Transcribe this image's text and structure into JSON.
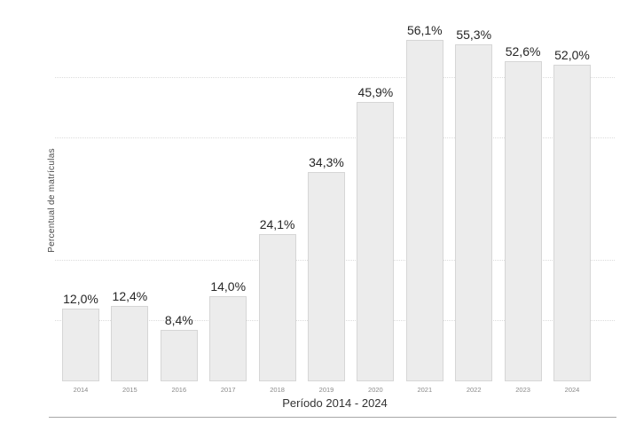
{
  "chart_data": {
    "type": "bar",
    "title": "",
    "xlabel": "Período 2014 - 2024",
    "ylabel": "Percentual de matrículas",
    "categories": [
      "2014",
      "2015",
      "2016",
      "2017",
      "2018",
      "2019",
      "2020",
      "2021",
      "2022",
      "2023",
      "2024"
    ],
    "values": [
      12.0,
      12.4,
      8.4,
      14.0,
      24.1,
      34.3,
      45.9,
      56.1,
      55.3,
      52.6,
      52.0
    ],
    "value_labels": [
      "12,0%",
      "12,4%",
      "8,4%",
      "14,0%",
      "24,1%",
      "34,3%",
      "45,9%",
      "56,1%",
      "55,3%",
      "52,6%",
      "52,0%"
    ],
    "ylim": [
      0,
      62.5
    ],
    "gridline_values": [
      10,
      20,
      40,
      50
    ],
    "grid_style": "dotted-horizontal",
    "legend": "none",
    "colors": {
      "background": "#ffffff",
      "bar_fill": "#ececec",
      "bar_border": "#d6d6d6",
      "value_label": "#262626",
      "tick_label": "#8a8a8a",
      "axis_title": "#333333",
      "gridline": "#dcdcdc",
      "divider": "#a8a8a8"
    }
  }
}
